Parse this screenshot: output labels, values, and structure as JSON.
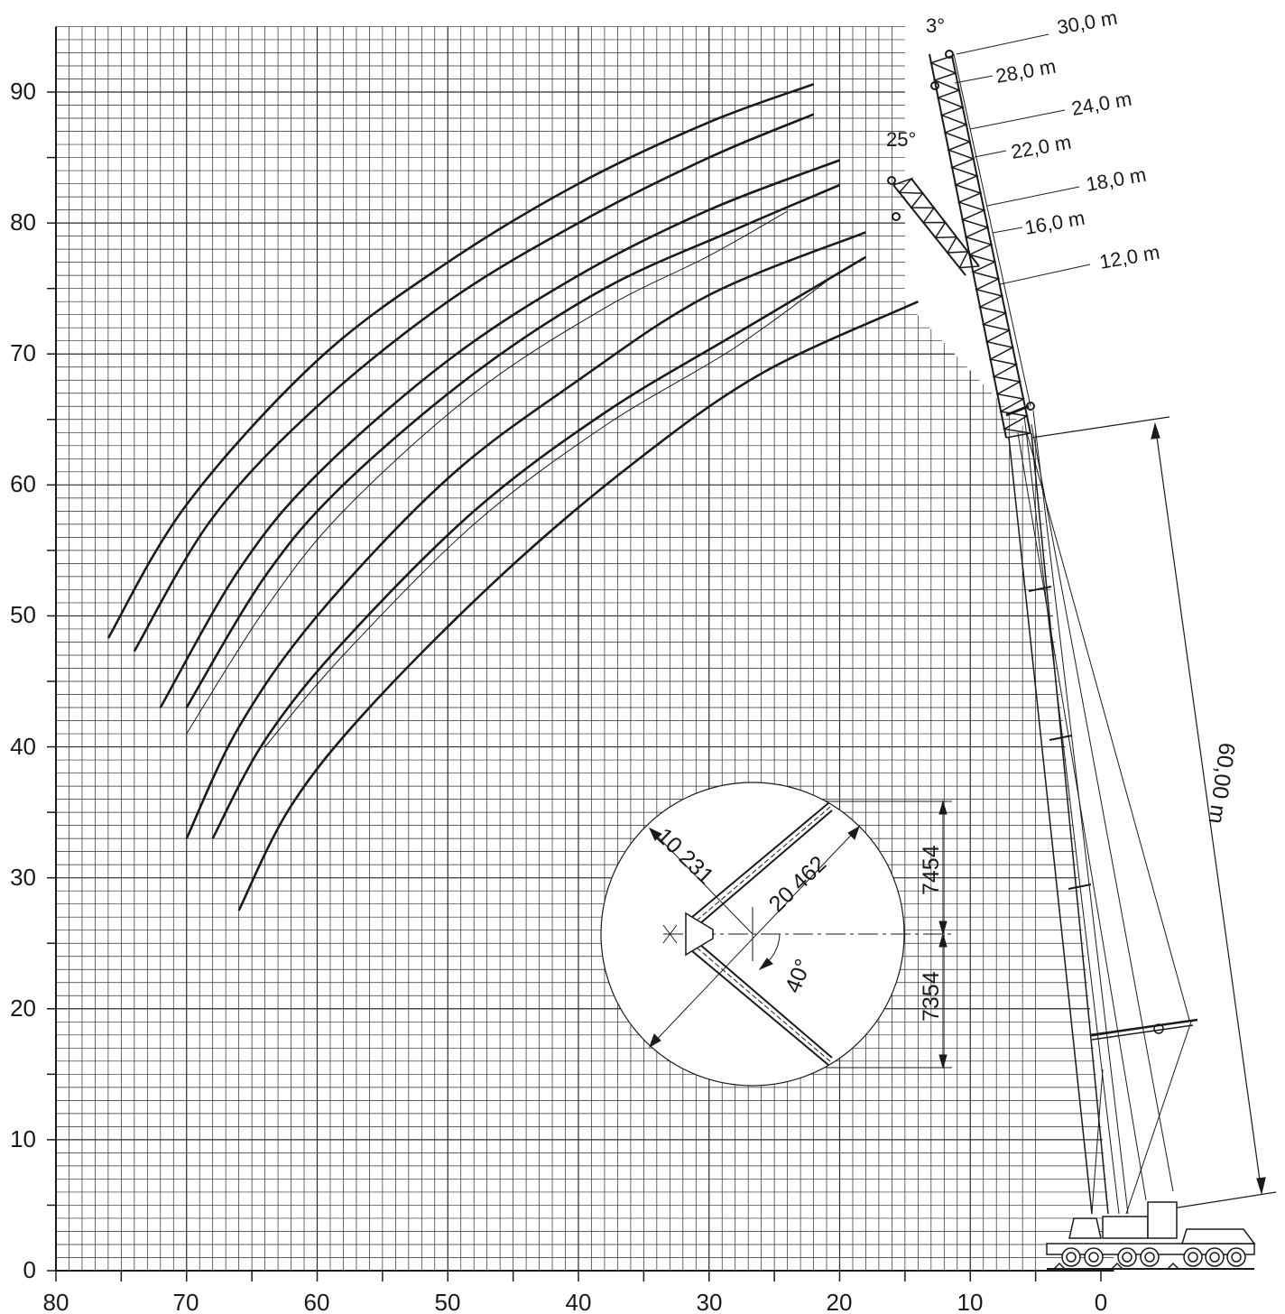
{
  "chart_data": {
    "type": "line",
    "title": "",
    "xlabel": "",
    "ylabel": "",
    "xlim": [
      80,
      -12
    ],
    "ylim": [
      0,
      95
    ],
    "x_ticks": [
      "80",
      "70",
      "60",
      "50",
      "40",
      "30",
      "20",
      "10",
      "0"
    ],
    "y_ticks": [
      "0",
      "10",
      "20",
      "30",
      "40",
      "50",
      "60",
      "70",
      "80",
      "90"
    ],
    "grid": true,
    "series": [
      {
        "values": [
          [
            76,
            48.3
          ],
          [
            70,
            58.5
          ],
          [
            60,
            69.5
          ],
          [
            50,
            77.0
          ],
          [
            40,
            83.0
          ],
          [
            30,
            87.7
          ],
          [
            22,
            90.6
          ]
        ]
      },
      {
        "values": [
          [
            74,
            47.3
          ],
          [
            68,
            57.5
          ],
          [
            60,
            66.0
          ],
          [
            50,
            74.0
          ],
          [
            40,
            80.0
          ],
          [
            30,
            85.0
          ],
          [
            22,
            88.3
          ]
        ]
      },
      {
        "values": [
          [
            72,
            43.0
          ],
          [
            66,
            53.5
          ],
          [
            60,
            60.8
          ],
          [
            50,
            69.5
          ],
          [
            40,
            76.0
          ],
          [
            30,
            81.0
          ],
          [
            20,
            84.8
          ]
        ]
      },
      {
        "values": [
          [
            70,
            43.0
          ],
          [
            64,
            53.0
          ],
          [
            58,
            60.0
          ],
          [
            48,
            68.5
          ],
          [
            38,
            75.0
          ],
          [
            28,
            79.5
          ],
          [
            20,
            82.9
          ]
        ]
      },
      {
        "values": [
          [
            70,
            41.0
          ],
          [
            64,
            50.5
          ],
          [
            58,
            58.0
          ],
          [
            48,
            67.0
          ],
          [
            38,
            73.5
          ],
          [
            30,
            77.5
          ],
          [
            24,
            80.9
          ]
        ]
      },
      {
        "values": [
          [
            70,
            33.0
          ],
          [
            66,
            41.5
          ],
          [
            60,
            50.0
          ],
          [
            50,
            60.5
          ],
          [
            40,
            68.0
          ],
          [
            30,
            74.5
          ],
          [
            18,
            79.3
          ]
        ]
      },
      {
        "values": [
          [
            68,
            33.0
          ],
          [
            64,
            40.5
          ],
          [
            58,
            48.0
          ],
          [
            48,
            58.0
          ],
          [
            38,
            65.5
          ],
          [
            28,
            71.5
          ],
          [
            18,
            77.4
          ]
        ]
      },
      {
        "values": [
          [
            64,
            40.0
          ],
          [
            58,
            47.0
          ],
          [
            48,
            57.0
          ],
          [
            38,
            64.5
          ],
          [
            28,
            70.5
          ],
          [
            20,
            76.3
          ]
        ]
      },
      {
        "values": [
          [
            66,
            27.5
          ],
          [
            62,
            35.5
          ],
          [
            56,
            43.0
          ],
          [
            46,
            53.0
          ],
          [
            36,
            61.5
          ],
          [
            26,
            68.5
          ],
          [
            14,
            74.0
          ]
        ]
      }
    ]
  },
  "jib_lengths": [
    "30,0 m",
    "28,0 m",
    "24,0 m",
    "22,0 m",
    "18,0 m",
    "16,0 m",
    "12,0 m"
  ],
  "jib_angles": [
    "3°",
    "25°"
  ],
  "main_boom_length": "60,00 m",
  "inset": {
    "radius": "10 231",
    "diameter": "20 462",
    "height_upper": "7454",
    "height_lower": "7354",
    "angle": "40°"
  }
}
